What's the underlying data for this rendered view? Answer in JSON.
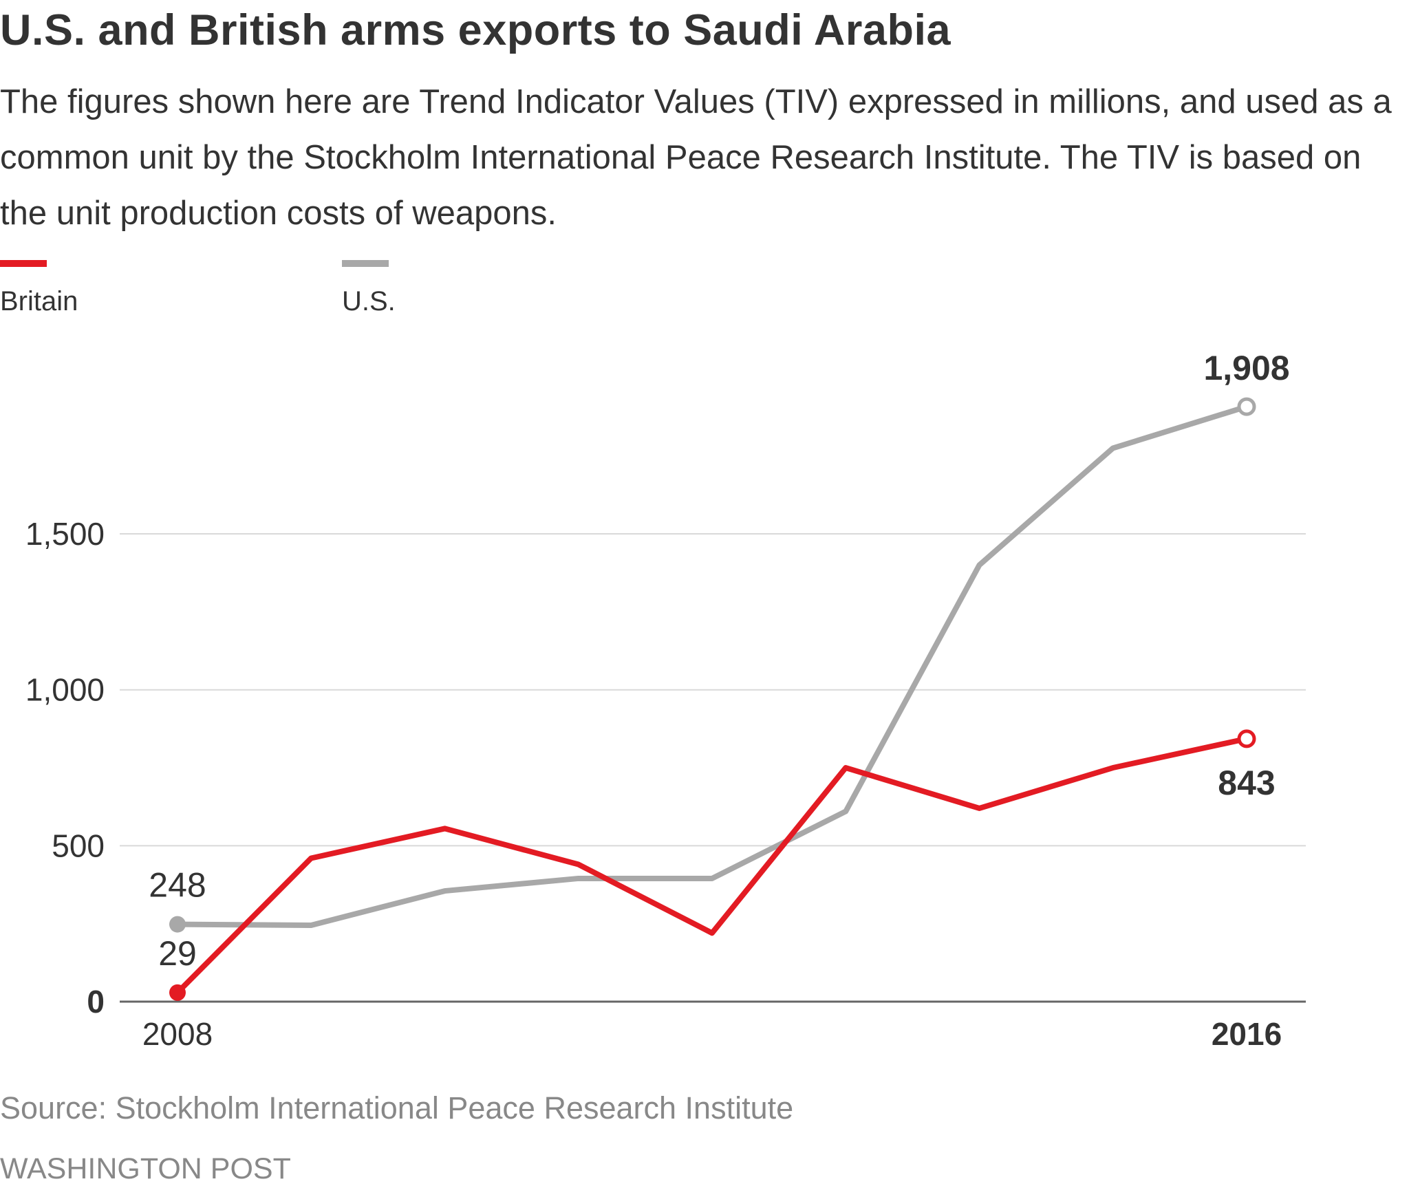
{
  "title": "U.S. and British arms exports to Saudi Arabia",
  "subtitle": "The figures shown here are Trend Indicator Values (TIV) expressed in millions, and used as a common unit by the Stockholm International Peace Research Institute. The TIV is based on the unit production costs of weapons.",
  "source": "Source: Stockholm International Peace Research Institute",
  "credit": "WASHINGTON POST",
  "colors": {
    "britain": "#e31b23",
    "us": "#a8a8a8",
    "grid": "#d9d9d9",
    "axis": "#666666",
    "text": "#333333"
  },
  "chart_data": {
    "type": "line",
    "title": "",
    "xlabel": "",
    "ylabel": "",
    "x": [
      2008,
      2009,
      2010,
      2011,
      2012,
      2013,
      2014,
      2015,
      2016
    ],
    "xticks": [
      "2008",
      "2016"
    ],
    "ylim": [
      0,
      2000
    ],
    "yticks": [
      0,
      500,
      1000,
      1500
    ],
    "ytick_labels": [
      "0",
      "500",
      "1,000",
      "1,500"
    ],
    "grid": true,
    "legend_position": "top-left",
    "series": [
      {
        "name": "Britain",
        "color": "#e31b23",
        "values": [
          29,
          460,
          555,
          440,
          220,
          750,
          620,
          750,
          843
        ],
        "start_label": "29",
        "end_label": "843"
      },
      {
        "name": "U.S.",
        "color": "#a8a8a8",
        "values": [
          248,
          245,
          355,
          395,
          395,
          610,
          1400,
          1775,
          1908
        ],
        "start_label": "248",
        "end_label": "1,908"
      }
    ]
  }
}
